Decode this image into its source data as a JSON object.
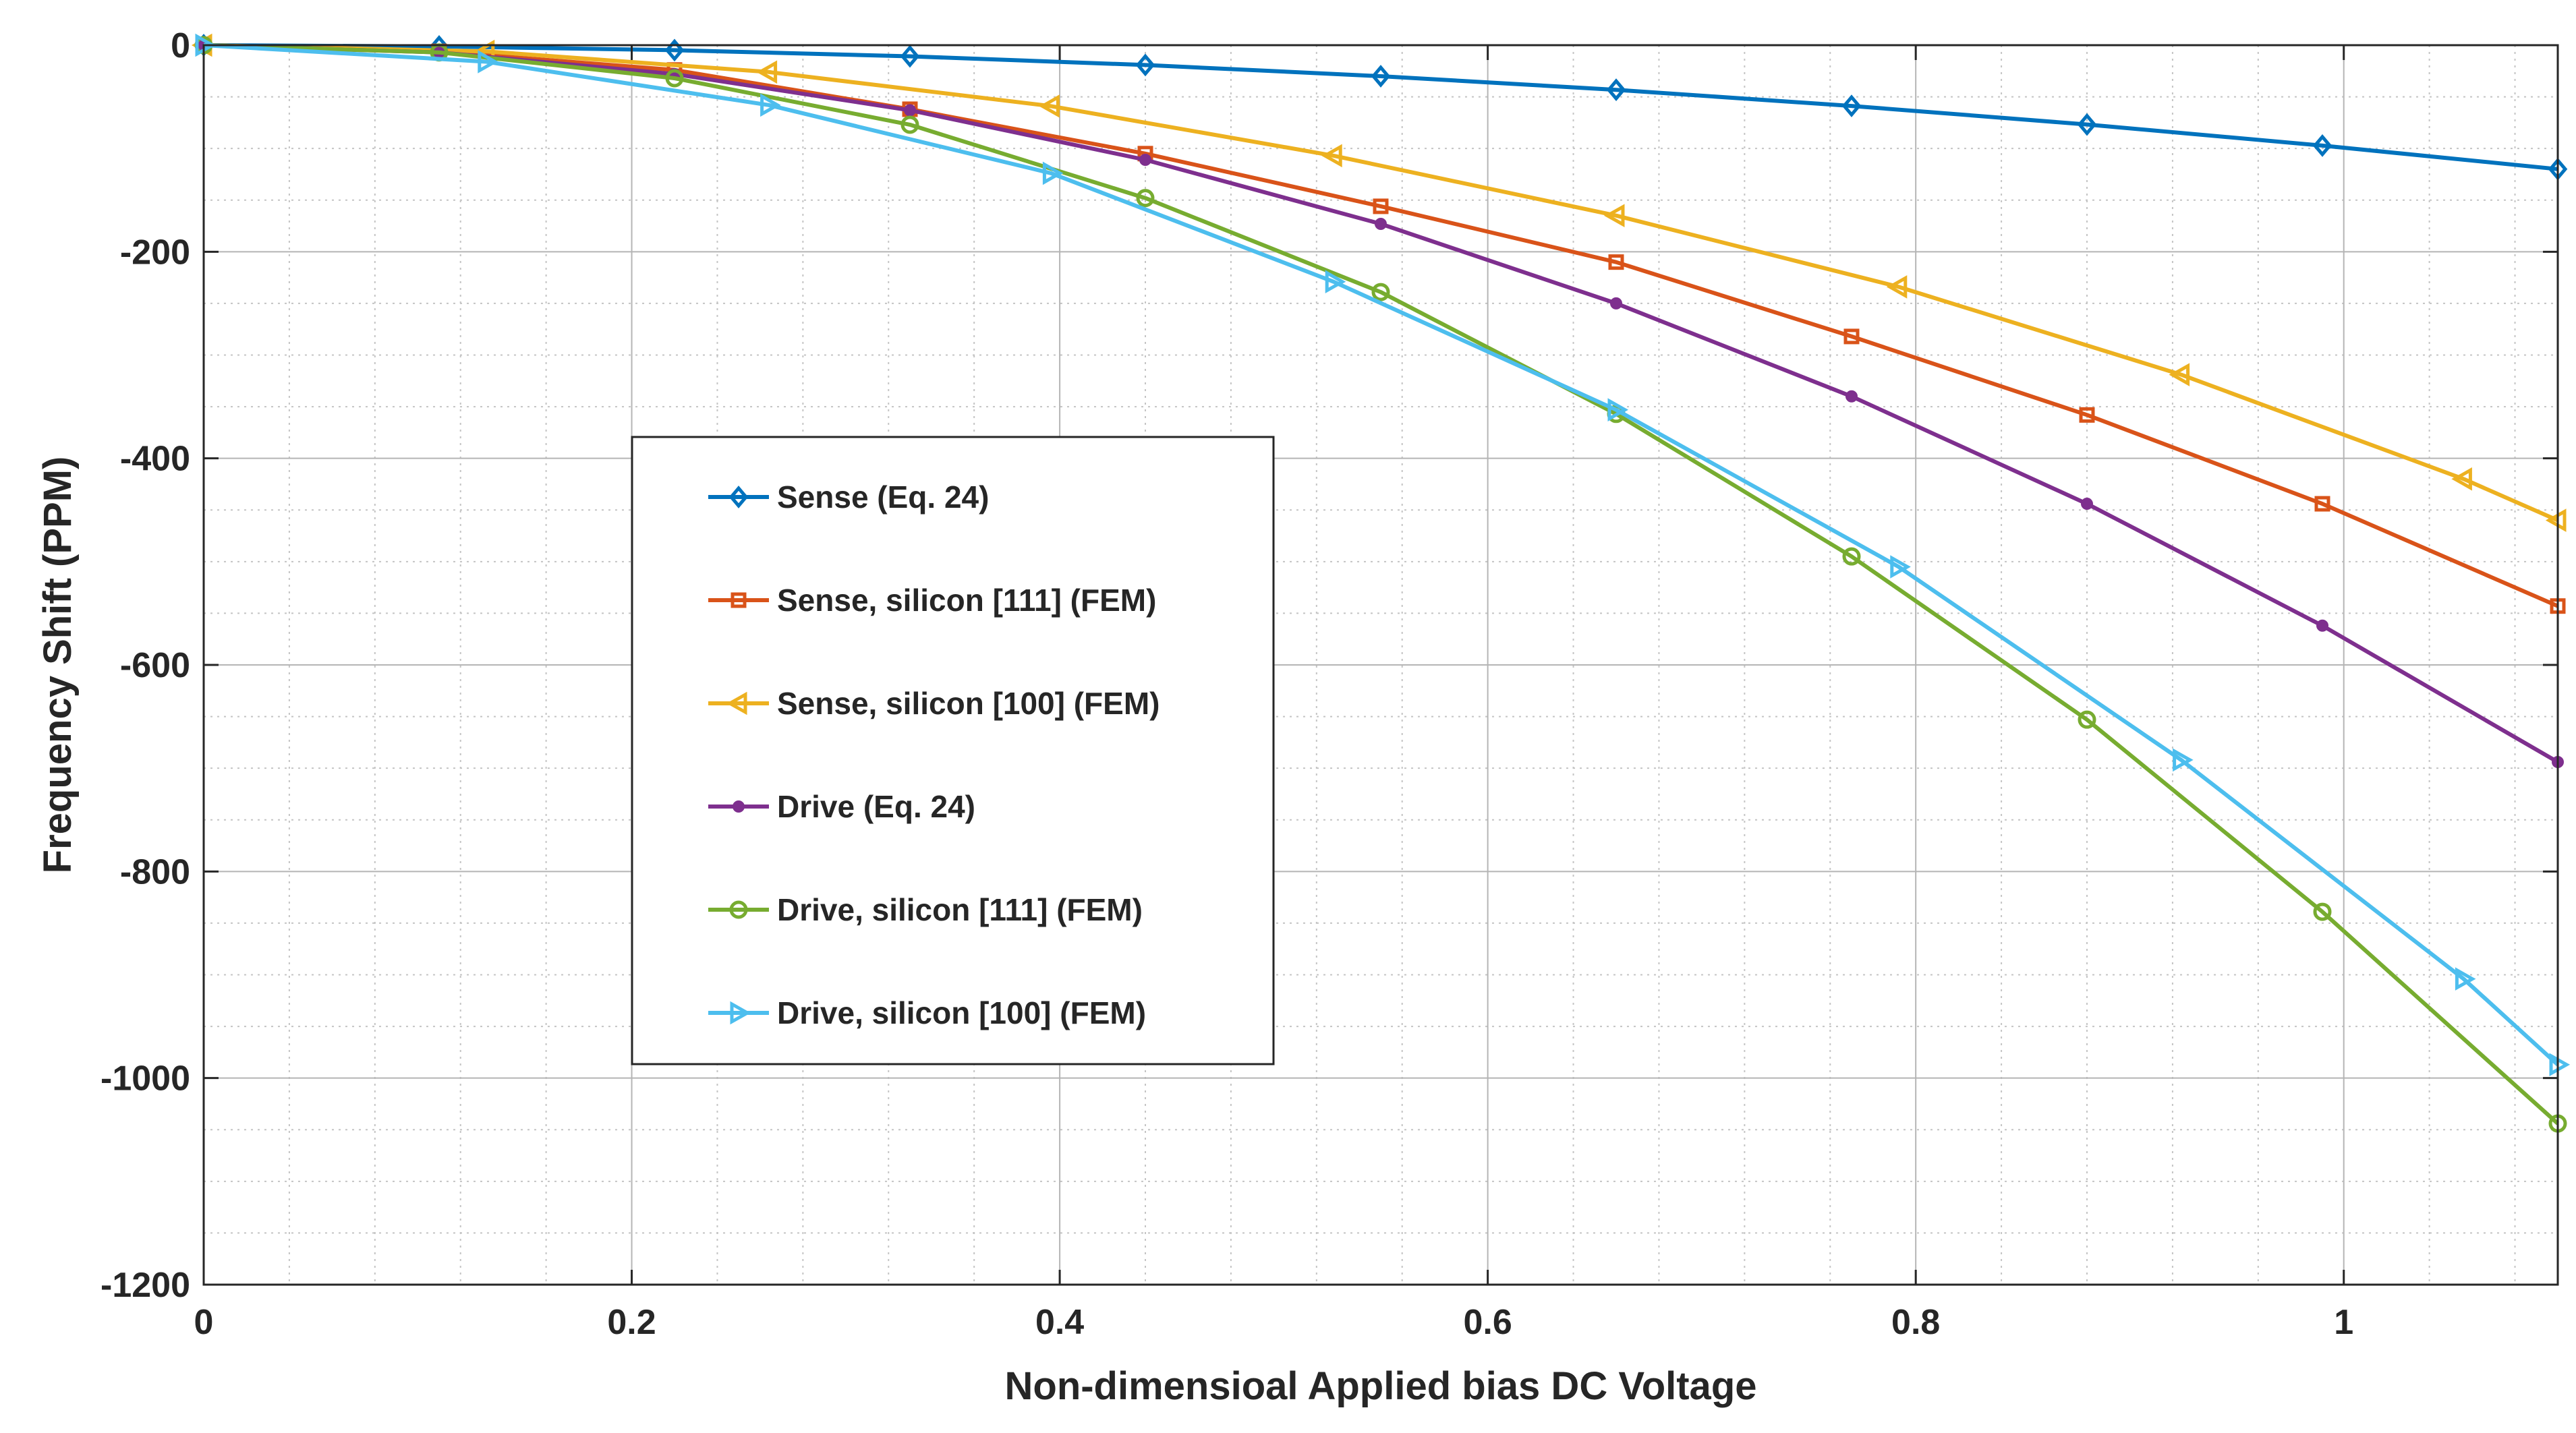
{
  "chart_data": {
    "type": "line",
    "title": "",
    "xlabel": "Non-dimensioal Applied bias DC Voltage",
    "ylabel": "Frequency Shift (PPM)",
    "xlim": [
      0,
      1.1
    ],
    "ylim": [
      -1200,
      0
    ],
    "xticks": [
      0,
      0.2,
      0.4,
      0.6,
      0.8,
      1
    ],
    "xtick_labels": [
      "0",
      "0.2",
      "0.4",
      "0.6",
      "0.8",
      "1"
    ],
    "yticks": [
      0,
      -200,
      -400,
      -600,
      -800,
      -1000,
      -1200
    ],
    "ytick_labels": [
      "0",
      "-200",
      "-400",
      "-600",
      "-800",
      "-1000",
      "-1200"
    ],
    "grid": true,
    "minor_grid": true,
    "legend_position": "center-left",
    "series": [
      {
        "name": "Sense (Eq. 24)",
        "color": "#0072BD",
        "marker": "diamond",
        "x": [
          0,
          0.11,
          0.22,
          0.33,
          0.44,
          0.55,
          0.66,
          0.77,
          0.88,
          0.99,
          1.1
        ],
        "y": [
          0,
          -1.2,
          -4.8,
          -10.8,
          -19.2,
          -30,
          -43.2,
          -58.8,
          -76.8,
          -97.2,
          -120
        ]
      },
      {
        "name": "Sense, silicon [111] (FEM)",
        "color": "#D95319",
        "marker": "square",
        "x": [
          0,
          0.11,
          0.22,
          0.33,
          0.44,
          0.55,
          0.66,
          0.77,
          0.88,
          0.99,
          1.1
        ],
        "y": [
          0,
          -6,
          -24,
          -62,
          -105,
          -156,
          -210,
          -282,
          -358,
          -444,
          -543
        ]
      },
      {
        "name": "Sense, silicon [100] (FEM)",
        "color": "#EDB120",
        "marker": "triangle-left",
        "x": [
          0,
          0.132,
          0.264,
          0.396,
          0.528,
          0.66,
          0.792,
          0.924,
          1.056,
          1.1
        ],
        "y": [
          0,
          -6,
          -26,
          -59,
          -107,
          -165,
          -234,
          -319,
          -420,
          -460
        ]
      },
      {
        "name": "Drive (Eq. 24)",
        "color": "#7E2F8E",
        "marker": "dot",
        "x": [
          0,
          0.11,
          0.22,
          0.33,
          0.44,
          0.55,
          0.66,
          0.77,
          0.88,
          0.99,
          1.1
        ],
        "y": [
          0,
          -7,
          -28,
          -63,
          -111,
          -173,
          -250,
          -340,
          -444,
          -562,
          -694
        ]
      },
      {
        "name": "Drive, silicon [111] (FEM)",
        "color": "#77AC30",
        "marker": "circle",
        "x": [
          0,
          0.11,
          0.22,
          0.33,
          0.44,
          0.55,
          0.66,
          0.77,
          0.88,
          0.99,
          1.1
        ],
        "y": [
          0,
          -7,
          -32,
          -77,
          -148,
          -239,
          -357,
          -495,
          -653,
          -839,
          -1044
        ]
      },
      {
        "name": "Drive, silicon [100] (FEM)",
        "color": "#4DBEEE",
        "marker": "triangle-right",
        "x": [
          0,
          0.132,
          0.264,
          0.396,
          0.528,
          0.66,
          0.792,
          0.924,
          1.056,
          1.1
        ],
        "y": [
          0,
          -16,
          -58,
          -124,
          -229,
          -353,
          -505,
          -692,
          -904,
          -987
        ]
      }
    ]
  }
}
